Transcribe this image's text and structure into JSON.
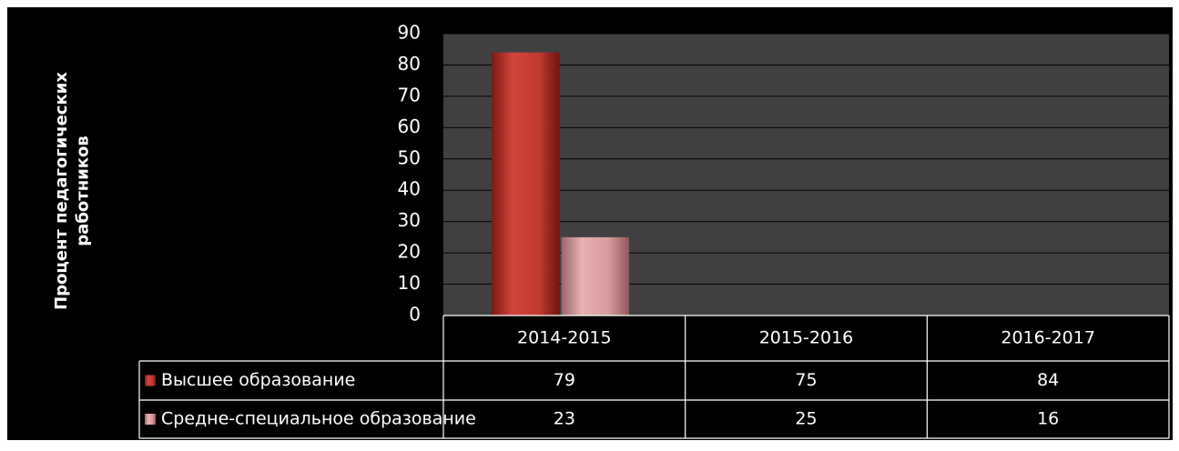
{
  "chart_data": {
    "type": "bar",
    "ylabel": [
      "Процент  педагогических",
      "работников"
    ],
    "categories": [
      "2014-2015",
      "2015-2016",
      "2016-2017"
    ],
    "series": [
      {
        "name": "Высшее образование",
        "color": "#c0392f",
        "values": [
          79,
          75,
          84
        ]
      },
      {
        "name": "Средне-специальное образование",
        "color": "#d99a9c",
        "values": [
          23,
          25,
          16
        ]
      }
    ],
    "ylim": [
      0,
      90
    ],
    "yticks": [
      0,
      10,
      20,
      30,
      40,
      50,
      60,
      70,
      80,
      90
    ],
    "grid": true
  }
}
